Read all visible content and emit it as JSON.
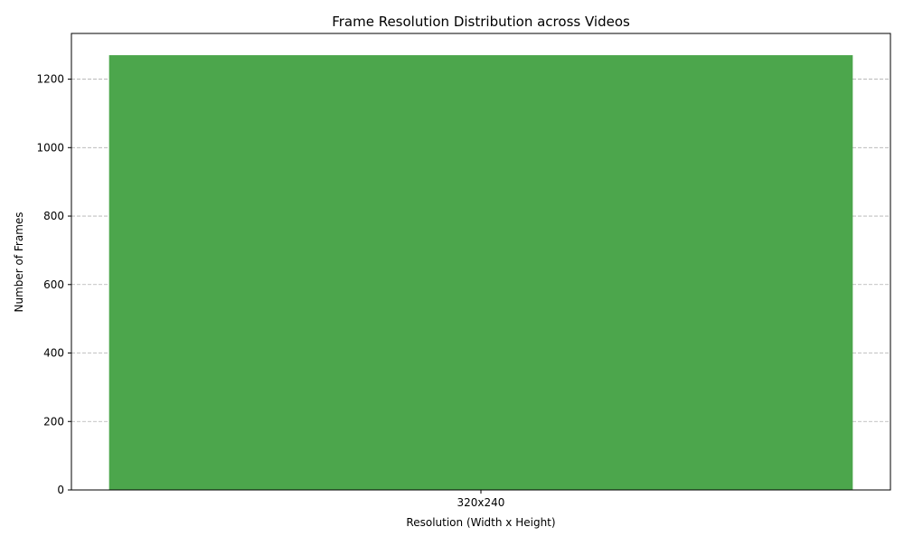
{
  "chart_data": {
    "type": "bar",
    "title": "Frame Resolution Distribution across Videos",
    "xlabel": "Resolution (Width x Height)",
    "ylabel": "Number of Frames",
    "categories": [
      "320x240"
    ],
    "values": [
      1270
    ],
    "ylim": [
      0,
      1333.5
    ],
    "yticks": [
      0,
      200,
      400,
      600,
      800,
      1000,
      1200
    ],
    "grid": "y-dashed",
    "bar_color": "#4ca64c",
    "grid_color": "#b0b0b0",
    "axis_color": "#000000"
  }
}
